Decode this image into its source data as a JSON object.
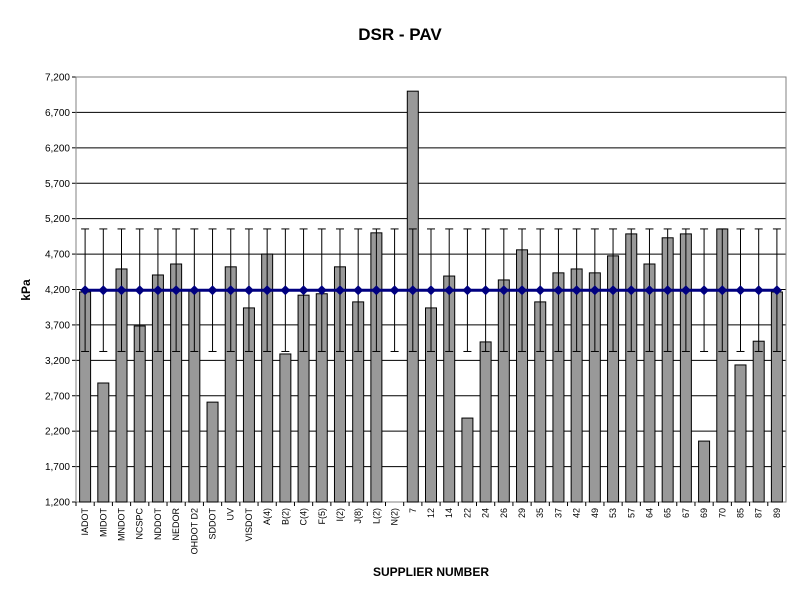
{
  "chart_data": {
    "type": "bar",
    "title": "DSR - PAV",
    "x_label": "SUPPLIER NUMBER",
    "y_label": "kPa",
    "categories": [
      "IADOT",
      "MIDOT",
      "MNDOT",
      "NCSPC",
      "NDDOT",
      "NEDOR",
      "OHDOT D2",
      "SDDOT",
      "UV",
      "VISDOT",
      "A(4)",
      "B(2)",
      "C(4)",
      "F(5)",
      "I(2)",
      "J(8)",
      "L(2)",
      "N(2)",
      "7",
      "12",
      "14",
      "22",
      "24",
      "26",
      "29",
      "35",
      "37",
      "42",
      "49",
      "53",
      "57",
      "64",
      "65",
      "67",
      "69",
      "70",
      "85",
      "87",
      "89"
    ],
    "series": [
      {
        "type": "bar",
        "color": "#999999",
        "values": [
          4165,
          2880,
          4490,
          3685,
          4405,
          4560,
          4195,
          2610,
          4520,
          3940,
          4700,
          3290,
          4120,
          4140,
          4520,
          4025,
          5000,
          null,
          7000,
          3940,
          4390,
          2385,
          3460,
          4335,
          4760,
          4025,
          4435,
          4490,
          4435,
          4675,
          4985,
          4560,
          4930,
          4985,
          2060,
          5055,
          3135,
          3470,
          4165
        ]
      },
      {
        "type": "line",
        "color": "#000080",
        "values": [
          4190,
          4190,
          4190,
          4190,
          4190,
          4190,
          4190,
          4190,
          4190,
          4190,
          4190,
          4190,
          4190,
          4190,
          4190,
          4190,
          4190,
          4190,
          4190,
          4190,
          4190,
          4190,
          4190,
          4190,
          4190,
          4190,
          4190,
          4190,
          4190,
          4190,
          4190,
          4190,
          4190,
          4190,
          4190,
          4190,
          4190,
          4190,
          4190
        ],
        "error": [
          865,
          865,
          865,
          865,
          865,
          865,
          865,
          865,
          865,
          865,
          865,
          865,
          865,
          865,
          865,
          865,
          865,
          865,
          865,
          865,
          865,
          865,
          865,
          865,
          865,
          865,
          865,
          865,
          865,
          865,
          865,
          865,
          865,
          865,
          865,
          865,
          865,
          865,
          865
        ]
      }
    ],
    "ylim": [
      1200,
      7200
    ],
    "yticks": [
      {
        "value": 1200,
        "label": "1,200"
      },
      {
        "value": 1700,
        "label": "1,700"
      },
      {
        "value": 2200,
        "label": "2,200"
      },
      {
        "value": 2700,
        "label": "2,700"
      },
      {
        "value": 3200,
        "label": "3,200"
      },
      {
        "value": 3700,
        "label": "3,700"
      },
      {
        "value": 4200,
        "label": "4,200"
      },
      {
        "value": 4700,
        "label": "4,700"
      },
      {
        "value": 5200,
        "label": "5,200"
      },
      {
        "value": 5700,
        "label": "5,700"
      },
      {
        "value": 6200,
        "label": "6,200"
      },
      {
        "value": 6700,
        "label": "6,700"
      },
      {
        "value": 7200,
        "label": "7,200"
      }
    ],
    "grid": true
  }
}
